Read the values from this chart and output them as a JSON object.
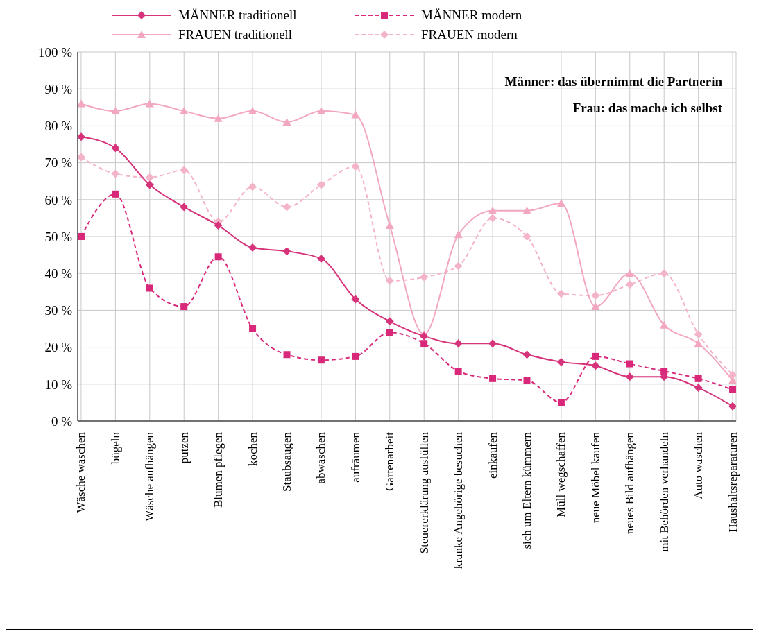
{
  "chart_data": {
    "type": "line",
    "categories": [
      "Wäsche waschen",
      "bügeln",
      "Wäsche aufhängen",
      "putzen",
      "Blumen pflegen",
      "kochen",
      "Staubsaugen",
      "abwaschen",
      "aufräumen",
      "Gartenarbeit",
      "Steuererklärung ausfüllen",
      "kranke Angehörige besuchen",
      "einkaufen",
      "sich um Eltern kümmern",
      "Müll wegschaffen",
      "neue Möbel kaufen",
      "neues Bild aufhängen",
      "mit Behörden verhandeln",
      "Auto waschen",
      "Haushaltsreparaturen"
    ],
    "series": [
      {
        "name": "MÄNNER traditionell",
        "color": "#d6337a",
        "marker": "diamond",
        "line_style": "solid",
        "values": [
          77,
          74,
          64,
          58,
          53,
          47,
          46,
          44,
          33,
          27,
          23,
          21,
          21,
          18,
          16,
          15,
          12,
          12,
          9,
          4
        ]
      },
      {
        "name": "MÄNNER modern",
        "color": "#d9287a",
        "marker": "square",
        "line_style": "dashed",
        "values": [
          50,
          61.5,
          36,
          31,
          44.5,
          25,
          18,
          16.5,
          17.5,
          24,
          21,
          13.5,
          11.5,
          11,
          5,
          17.5,
          15.5,
          13.5,
          11.5,
          8.5
        ]
      },
      {
        "name": "FRAUEN traditionell",
        "color": "#f2a7bf",
        "marker": "triangle",
        "line_style": "solid",
        "values": [
          86,
          84,
          86,
          84,
          82,
          84,
          81,
          84,
          83,
          53,
          23.5,
          50.5,
          57,
          57,
          59,
          31,
          40,
          26,
          21,
          11
        ]
      },
      {
        "name": "FRAUEN modern",
        "color": "#f4b4c8",
        "marker": "diamond",
        "line_style": "dashed",
        "values": [
          71.5,
          67,
          66,
          68,
          54,
          63.5,
          58,
          64,
          69,
          38,
          39,
          42,
          55,
          50,
          34.5,
          34,
          37,
          40,
          23.5,
          12.5
        ]
      }
    ],
    "ylim": [
      0,
      100
    ],
    "yticks": [
      {
        "value": 0,
        "label": "0 %"
      },
      {
        "value": 10,
        "label": "10 %"
      },
      {
        "value": 20,
        "label": "20 %"
      },
      {
        "value": 30,
        "label": "30 %"
      },
      {
        "value": 40,
        "label": "40 %"
      },
      {
        "value": 50,
        "label": "50 %"
      },
      {
        "value": 60,
        "label": "60 %"
      },
      {
        "value": 70,
        "label": "70 %"
      },
      {
        "value": 80,
        "label": "80 %"
      },
      {
        "value": 90,
        "label": "90 %"
      },
      {
        "value": 100,
        "label": "100 %"
      }
    ],
    "annotations": [
      "Männer: das übernimmt die Partnerin",
      "Frau: das mache ich selbst"
    ],
    "grid": true,
    "legend": "top"
  }
}
